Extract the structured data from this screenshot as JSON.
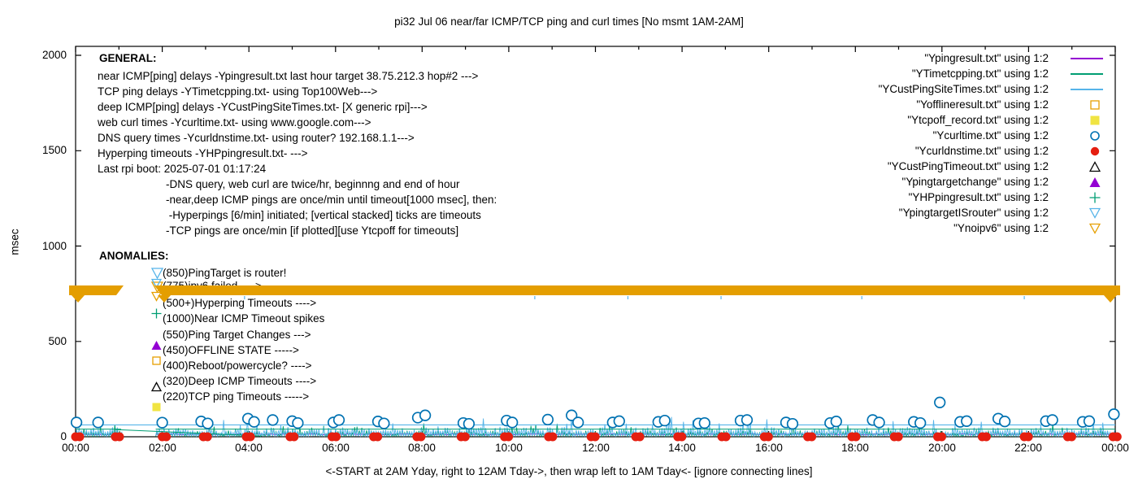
{
  "chart": {
    "title": "pi32 Jul 06  near/far ICMP/TCP ping and curl times [No msmt 1AM-2AM]",
    "ylabel": "msec",
    "xlabel": "<-START at 2AM Yday, right to 12AM Tday->, then wrap left to 1AM Tday<- [ignore connecting lines]"
  },
  "chart_data": {
    "type": "line+scatter",
    "title": "pi32 Jul 06  near/far ICMP/TCP ping and curl times [No msmt 1AM-2AM]",
    "xlabel": "<-START at 2AM Yday, right to 12AM Tday->, then wrap left to 1AM Tday<- [ignore connecting lines]",
    "ylabel": "msec",
    "x_axis": {
      "unit": "time of day HH:MM",
      "range_hours": [
        0,
        24
      ],
      "major_tick_hours": 2,
      "minor_tick_hours": 1,
      "tick_labels": [
        "00:00",
        "02:00",
        "04:00",
        "06:00",
        "08:00",
        "10:00",
        "12:00",
        "14:00",
        "16:00",
        "18:00",
        "20:00",
        "22:00",
        "00:00"
      ]
    },
    "y_axis": {
      "label": "msec",
      "range": [
        0,
        2000
      ],
      "ticks": [
        0,
        500,
        1000,
        1500,
        2000
      ]
    },
    "grid": false,
    "legend_position": "top-right, outside-style right aligned",
    "colors": {
      "purple": "#9400D3",
      "green": "#009E73",
      "sky": "#56B4E9",
      "orange": "#E69F00",
      "yellow": "#F0E442",
      "blue": "#0072B2",
      "red": "#E51E10",
      "black": "#000000"
    },
    "measurement_gap_hours": [
      1.05,
      1.85
    ],
    "series": [
      {
        "label": "\"Ypingresult.txt\" using 1:2",
        "style": "line",
        "color": "purple",
        "behavior": "near ICMP ping delays, flat ~10-15 msec, hidden under noise"
      },
      {
        "label": "\"YTimetcpping.txt\" using 1:2",
        "style": "line",
        "color": "green",
        "behavior": "TCP ping delays, dense comb noise ~5-70 msec with flat line ~40 msec"
      },
      {
        "label": "\"YCustPingSiteTimes.txt\" using 1:2",
        "style": "line",
        "color": "sky",
        "behavior": "deep ICMP ping delays, comb noise ~5-110 msec with flat line ~62 msec"
      },
      {
        "label": "\"Yofflineresult.txt\" using 1:2",
        "style": "marker",
        "marker": "square-open",
        "color": "orange",
        "behavior": "no points visible in plot (offline state = 450)"
      },
      {
        "label": "\"Ytcpoff_record.txt\" using 1:2",
        "style": "marker",
        "marker": "square-filled",
        "color": "yellow",
        "behavior": "no points visible in plot (TCP timeouts = 220)"
      },
      {
        "label": "\"Ycurltime.txt\" using 1:2",
        "style": "marker",
        "marker": "circle-open",
        "color": "blue",
        "behavior": "web curl times, pairs twice/hr ~60-120 msec, outlier ~180 msec at ~19:57"
      },
      {
        "label": "\"Ycurldnstime.txt\" using 1:2",
        "style": "marker",
        "marker": "circle-filled",
        "color": "red",
        "behavior": "DNS query times, paired dots ~0 msec every hour"
      },
      {
        "label": "\"YCustPingTimeout.txt\" using 1:2",
        "style": "marker",
        "marker": "tri-up-open",
        "color": "black",
        "behavior": "no points visible in plot (deep ICMP timeouts = 320)"
      },
      {
        "label": "\"Ypingtargetchange\" using 1:2",
        "style": "marker",
        "marker": "tri-up-filled",
        "color": "purple",
        "behavior": "no points visible in plot (ping target changes = 550)"
      },
      {
        "label": "\"YHPpingresult.txt\" using 1:2",
        "style": "marker",
        "marker": "plus",
        "color": "green",
        "behavior": "hyperping timeouts, none visible (500+)"
      },
      {
        "label": "\"YpingtargetISrouter\" using 1:2",
        "style": "marker",
        "marker": "tri-down-open",
        "color": "sky",
        "behavior": "marker shown in ANOMALIES key at 850"
      },
      {
        "label": "\"Ynoipv6\" using 1:2",
        "style": "marker",
        "marker": "tri-down-open",
        "color": "orange",
        "behavior": "continuous solid band of stacked triangles at ~775 msec across full day except 1AM-2AM gap"
      }
    ],
    "noipv6_band": {
      "msec": 775,
      "from_hour": -0.15,
      "to_hour": 24.1,
      "gap_hours": [
        1.11,
        1.82
      ],
      "color": "orange"
    },
    "curl_points_hour_msec": [
      [
        0.02,
        75
      ],
      [
        0.52,
        75
      ],
      [
        2.0,
        74
      ],
      [
        2.9,
        80
      ],
      [
        3.05,
        70
      ],
      [
        3.98,
        95
      ],
      [
        4.12,
        78
      ],
      [
        4.55,
        88
      ],
      [
        5.0,
        82
      ],
      [
        5.13,
        72
      ],
      [
        5.95,
        75
      ],
      [
        6.08,
        88
      ],
      [
        6.98,
        80
      ],
      [
        7.12,
        70
      ],
      [
        7.9,
        100
      ],
      [
        8.07,
        112
      ],
      [
        8.95,
        72
      ],
      [
        9.08,
        68
      ],
      [
        9.95,
        85
      ],
      [
        10.08,
        75
      ],
      [
        10.9,
        90
      ],
      [
        11.45,
        112
      ],
      [
        11.6,
        75
      ],
      [
        12.4,
        75
      ],
      [
        12.55,
        82
      ],
      [
        13.45,
        78
      ],
      [
        13.6,
        85
      ],
      [
        14.38,
        70
      ],
      [
        14.52,
        72
      ],
      [
        15.35,
        85
      ],
      [
        15.5,
        88
      ],
      [
        16.4,
        75
      ],
      [
        16.55,
        68
      ],
      [
        17.42,
        72
      ],
      [
        17.56,
        80
      ],
      [
        18.4,
        88
      ],
      [
        18.55,
        75
      ],
      [
        19.35,
        78
      ],
      [
        19.5,
        72
      ],
      [
        19.95,
        180
      ],
      [
        20.42,
        78
      ],
      [
        20.57,
        82
      ],
      [
        21.3,
        95
      ],
      [
        21.45,
        80
      ],
      [
        22.4,
        82
      ],
      [
        22.55,
        88
      ],
      [
        23.25,
        78
      ],
      [
        23.4,
        82
      ],
      [
        23.97,
        118
      ]
    ],
    "dns_points_hours": [
      0.0,
      0.92,
      2.0,
      2.95,
      3.94,
      4.95,
      5.92,
      6.88,
      7.88,
      8.9,
      9.9,
      10.92,
      11.9,
      12.93,
      13.9,
      14.92,
      15.9,
      16.9,
      17.92,
      18.9,
      19.9,
      20.93,
      21.9,
      22.9,
      23.95
    ],
    "dns_points_msec": 0,
    "noise": {
      "green": {
        "base_msec": 4,
        "amp_msec": 30,
        "spike_prob": 0.2,
        "spike_amp_msec": 40,
        "flat_line_msec": 40
      },
      "sky": {
        "base_msec": 6,
        "amp_msec": 45,
        "spike_prob": 0.12,
        "spike_amp_msec": 60,
        "flat_line_msec": 62
      },
      "purple": {
        "base_msec": 10,
        "jitter_msec": 6
      }
    },
    "gap_connector_green": {
      "from_hour_msec": [
        0.9,
        38
      ],
      "to_hour_msec": [
        4.3,
        4
      ]
    },
    "band_under_ticks_hours": [
      3.9,
      10.6,
      12.75,
      14.9,
      18.15,
      21.9
    ]
  },
  "general": {
    "header": "GENERAL:",
    "lines": [
      "near ICMP[ping] delays -Ypingresult.txt last hour target 38.75.212.3 hop#2 --->",
      "TCP ping delays -YTimetcpping.txt- using Top100Web--->",
      "deep ICMP[ping] delays -YCustPingSiteTimes.txt- [X generic rpi]--->",
      "web curl times -Ycurltime.txt- using www.google.com--->",
      "DNS query times -Ycurldnstime.txt- using router? 192.168.1.1--->",
      "Hyperping timeouts -YHPpingresult.txt- --->",
      "Last rpi boot: 2025-07-01 01:17:24"
    ],
    "notes": [
      "-DNS query, web curl are twice/hr, beginnng and end of hour",
      "-near,deep ICMP pings are once/min until timeout[1000 msec], then:",
      " -Hyperpings [6/min] initiated; [vertical stacked] ticks are timeouts",
      "-TCP pings are once/min [if plotted][use Ytcpoff for timeouts]"
    ]
  },
  "anomalies": {
    "header": "ANOMALIES:",
    "items": [
      {
        "marker": "tri-down-open",
        "color": "sky",
        "label": "(850)PingTarget is router!",
        "covered": false
      },
      {
        "marker": "tri-down-open",
        "color": "orange",
        "label": "(775)ipv6 failed ---->",
        "covered": true
      },
      {
        "marker": "plus",
        "color": "green",
        "label": "(500+)Hyperping Timeouts ---->",
        "covered": false
      },
      {
        "marker": null,
        "color": null,
        "label": "(1000)Near ICMP Timeout spikes",
        "covered": false
      },
      {
        "marker": "tri-up-filled",
        "color": "purple",
        "label": "(550)Ping Target Changes --->",
        "covered": false
      },
      {
        "marker": "square-open",
        "color": "orange",
        "label": "(450)OFFLINE STATE ----->",
        "covered": false
      },
      {
        "marker": null,
        "color": null,
        "label": "(400)Reboot/powercycle? ---->",
        "covered": false
      },
      {
        "marker": "tri-up-open",
        "color": "black",
        "label": "(320)Deep ICMP Timeouts ---->",
        "covered": false,
        "marker_dy": -6
      },
      {
        "marker": "square-filled",
        "color": "yellow",
        "label": "(220)TCP ping Timeouts ----->",
        "covered": false
      }
    ]
  },
  "legend": [
    {
      "label": "\"Ypingresult.txt\" using 1:2",
      "sample": "line",
      "color": "purple"
    },
    {
      "label": "\"YTimetcpping.txt\" using 1:2",
      "sample": "line",
      "color": "green"
    },
    {
      "label": "\"YCustPingSiteTimes.txt\" using 1:2",
      "sample": "line",
      "color": "sky"
    },
    {
      "label": "\"Yofflineresult.txt\" using 1:2",
      "sample": "square-open",
      "color": "orange"
    },
    {
      "label": "\"Ytcpoff_record.txt\" using 1:2",
      "sample": "square-filled",
      "color": "yellow"
    },
    {
      "label": "\"Ycurltime.txt\" using 1:2",
      "sample": "circle-open",
      "color": "blue"
    },
    {
      "label": "\"Ycurldnstime.txt\" using 1:2",
      "sample": "circle-filled",
      "color": "red"
    },
    {
      "label": "\"YCustPingTimeout.txt\" using 1:2",
      "sample": "tri-up-open",
      "color": "black"
    },
    {
      "label": "\"Ypingtargetchange\" using 1:2",
      "sample": "tri-up-filled",
      "color": "purple"
    },
    {
      "label": "\"YHPpingresult.txt\" using 1:2",
      "sample": "plus",
      "color": "green"
    },
    {
      "label": "\"YpingtargetISrouter\" using 1:2",
      "sample": "tri-down-open",
      "color": "sky"
    },
    {
      "label": "\"Ynoipv6\" using 1:2",
      "sample": "tri-down-open",
      "color": "orange"
    }
  ]
}
